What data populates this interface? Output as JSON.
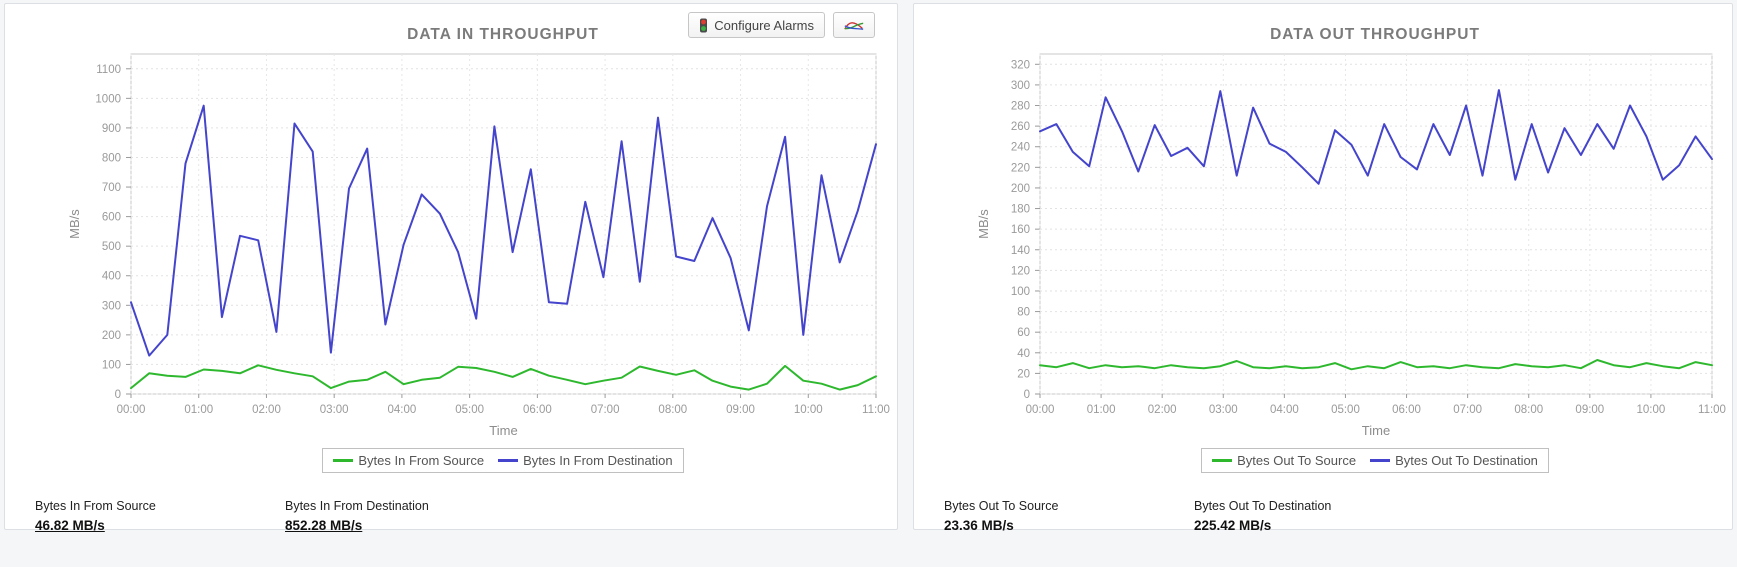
{
  "buttons": {
    "configure_alarms": "Configure Alarms"
  },
  "chart_data": [
    {
      "type": "line",
      "title": "DATA IN THROUGHPUT",
      "xlabel": "Time",
      "ylabel": "MB/s",
      "x_tick_labels": [
        "00:00",
        "01:00",
        "02:00",
        "03:00",
        "04:00",
        "05:00",
        "06:00",
        "07:00",
        "08:00",
        "09:00",
        "10:00",
        "11:00"
      ],
      "ylim": [
        0,
        1100
      ],
      "ytick_interval": 100,
      "grid": true,
      "legend_position": "bottom",
      "series": [
        {
          "name": "Bytes In From Source",
          "color": "#2eb82e",
          "values": [
            20,
            70,
            62,
            58,
            83,
            78,
            70,
            97,
            82,
            70,
            60,
            20,
            42,
            48,
            75,
            33,
            48,
            55,
            92,
            88,
            75,
            58,
            85,
            62,
            48,
            33,
            45,
            55,
            93,
            78,
            65,
            80,
            45,
            25,
            15,
            35,
            95,
            45,
            35,
            15,
            30,
            60
          ]
        },
        {
          "name": "Bytes In From Destination",
          "color": "#4444cc",
          "values": [
            310,
            130,
            200,
            780,
            975,
            260,
            535,
            520,
            210,
            915,
            820,
            140,
            695,
            830,
            235,
            505,
            675,
            610,
            480,
            255,
            905,
            480,
            760,
            310,
            305,
            650,
            395,
            855,
            380,
            935,
            465,
            450,
            595,
            460,
            215,
            635,
            870,
            200,
            740,
            445,
            620,
            845
          ]
        }
      ]
    },
    {
      "type": "line",
      "title": "DATA OUT THROUGHPUT",
      "xlabel": "Time",
      "ylabel": "MB/s",
      "x_tick_labels": [
        "00:00",
        "01:00",
        "02:00",
        "03:00",
        "04:00",
        "05:00",
        "06:00",
        "07:00",
        "08:00",
        "09:00",
        "10:00",
        "11:00"
      ],
      "ylim": [
        0,
        320
      ],
      "ytick_interval": 20,
      "grid": true,
      "legend_position": "bottom",
      "series": [
        {
          "name": "Bytes Out To Source",
          "color": "#2eb82e",
          "values": [
            28,
            26,
            30,
            25,
            28,
            26,
            27,
            25,
            28,
            26,
            25,
            27,
            32,
            26,
            25,
            27,
            25,
            26,
            30,
            24,
            27,
            25,
            31,
            26,
            27,
            25,
            28,
            26,
            25,
            29,
            27,
            26,
            28,
            25,
            33,
            28,
            26,
            30,
            27,
            25,
            31,
            28
          ]
        },
        {
          "name": "Bytes Out To Destination",
          "color": "#4444cc",
          "values": [
            255,
            262,
            235,
            221,
            288,
            255,
            216,
            261,
            231,
            239,
            221,
            294,
            212,
            278,
            243,
            235,
            220,
            204,
            256,
            242,
            212,
            262,
            230,
            218,
            262,
            232,
            280,
            212,
            295,
            208,
            262,
            215,
            258,
            232,
            262,
            238,
            280,
            250,
            208,
            222,
            250,
            228
          ]
        }
      ]
    }
  ],
  "stats": {
    "data_in": [
      {
        "label": "Bytes In From Source",
        "value": "46.82 MB/s"
      },
      {
        "label": "Bytes In From Destination",
        "value": "852.28 MB/s"
      }
    ],
    "data_out": [
      {
        "label": "Bytes Out To Source",
        "value": "23.36 MB/s"
      },
      {
        "label": "Bytes Out To Destination",
        "value": "225.42 MB/s"
      }
    ]
  }
}
